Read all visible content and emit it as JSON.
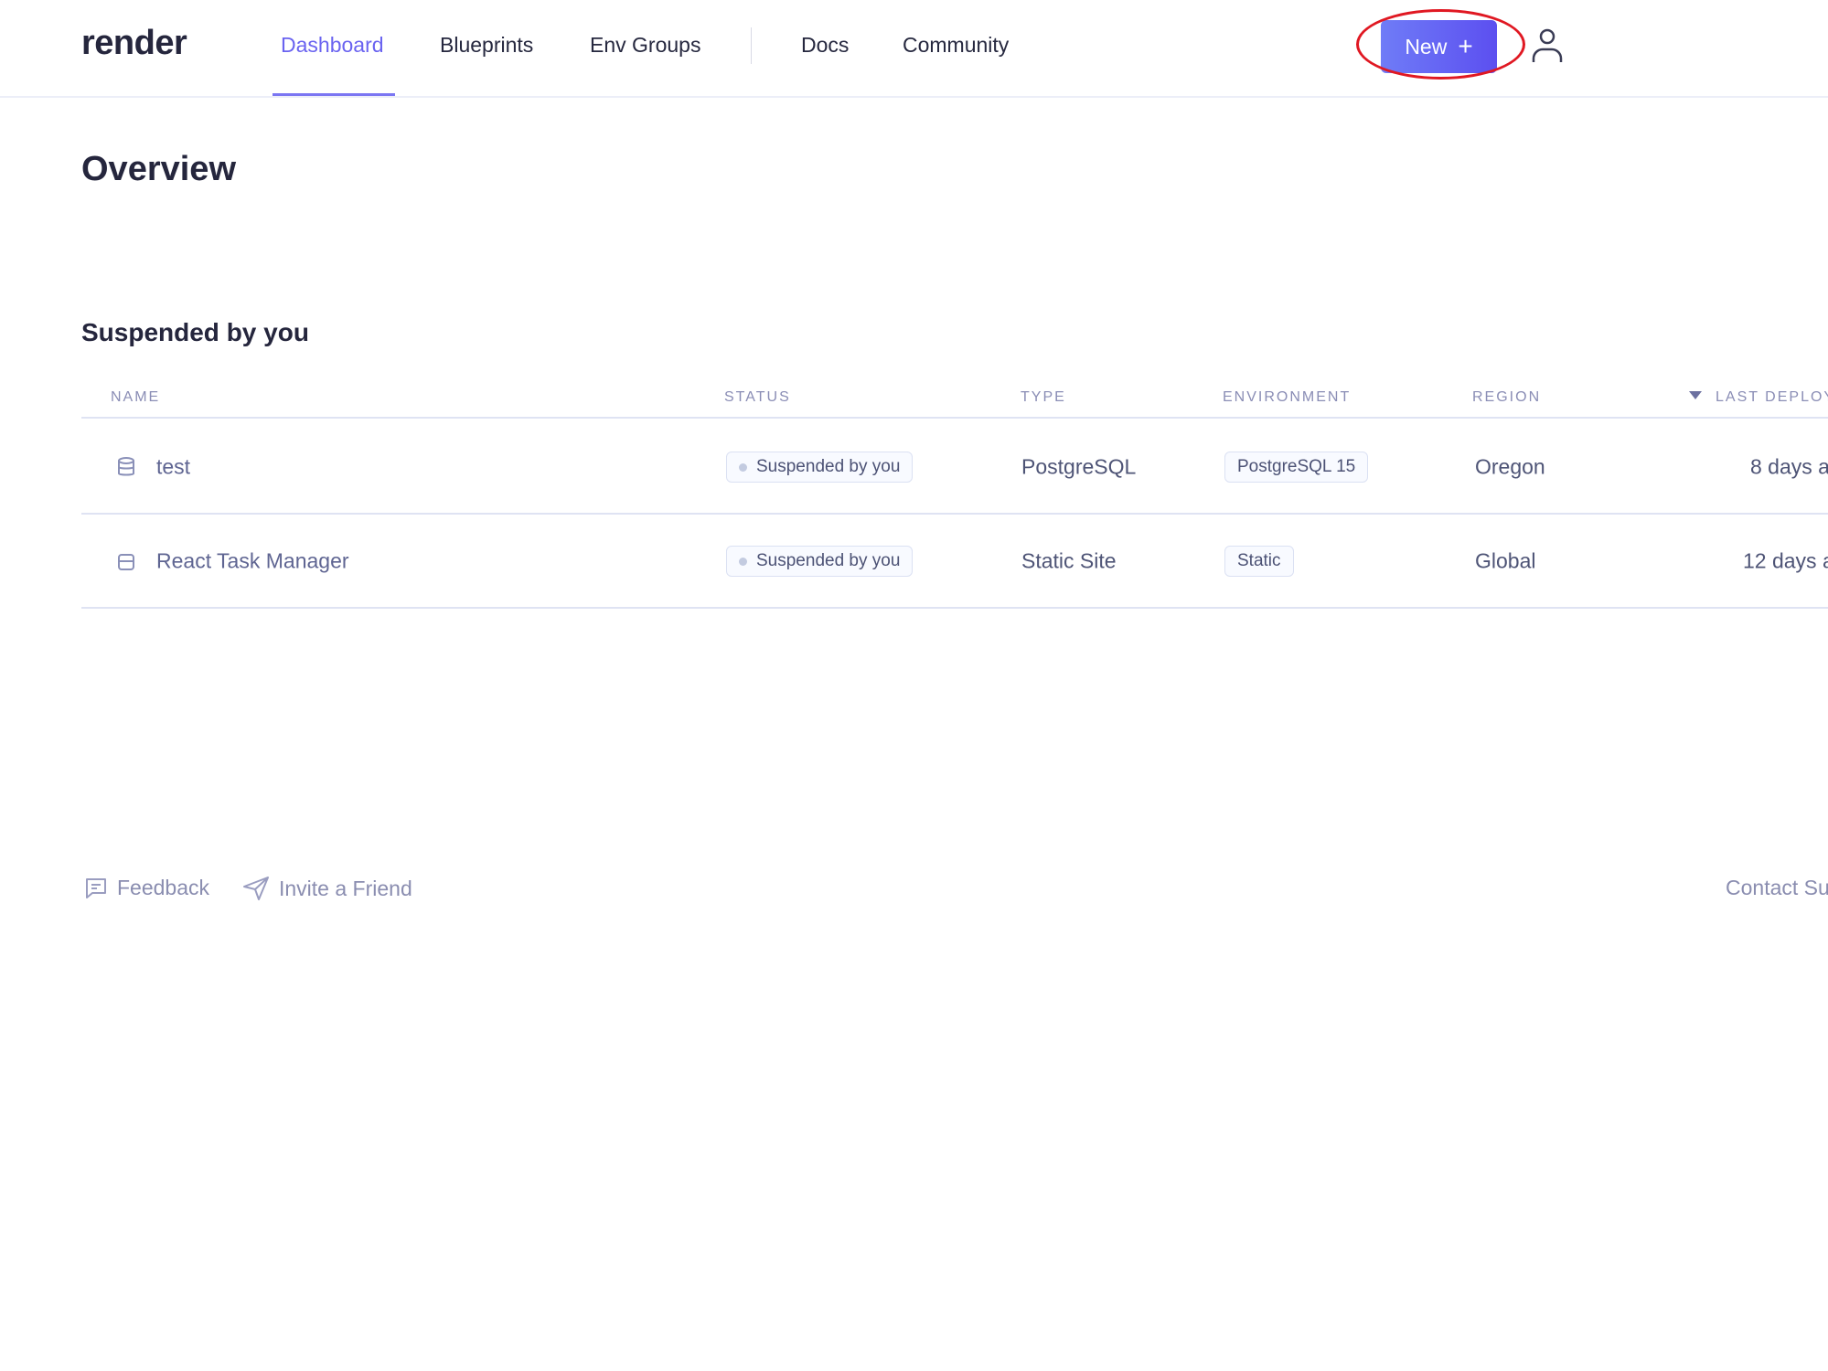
{
  "header": {
    "logo": "render",
    "nav": [
      {
        "label": "Dashboard",
        "active": true
      },
      {
        "label": "Blueprints"
      },
      {
        "label": "Env Groups"
      },
      {
        "label": "Docs"
      },
      {
        "label": "Community"
      }
    ],
    "new_button": "New",
    "new_icon": "plus-icon",
    "user_icon": "user-icon",
    "accent": "#6a63f0"
  },
  "page_title": "Overview",
  "section_title": "Suspended by you",
  "table": {
    "columns": [
      "NAME",
      "STATUS",
      "TYPE",
      "ENVIRONMENT",
      "REGION",
      "LAST DEPLOY"
    ],
    "rows": [
      {
        "icon": "database-icon",
        "name": "test",
        "status": "Suspended by you",
        "type": "PostgreSQL",
        "environment": "PostgreSQL 15",
        "region": "Oregon",
        "last_deploy": "8 days a"
      },
      {
        "icon": "static-site-icon",
        "name": "React Task Manager",
        "status": "Suspended by you",
        "type": "Static Site",
        "environment": "Static",
        "region": "Global",
        "last_deploy": "12 days a"
      }
    ]
  },
  "footer": {
    "feedback": "Feedback",
    "invite": "Invite a Friend",
    "contact": "Contact Su"
  }
}
